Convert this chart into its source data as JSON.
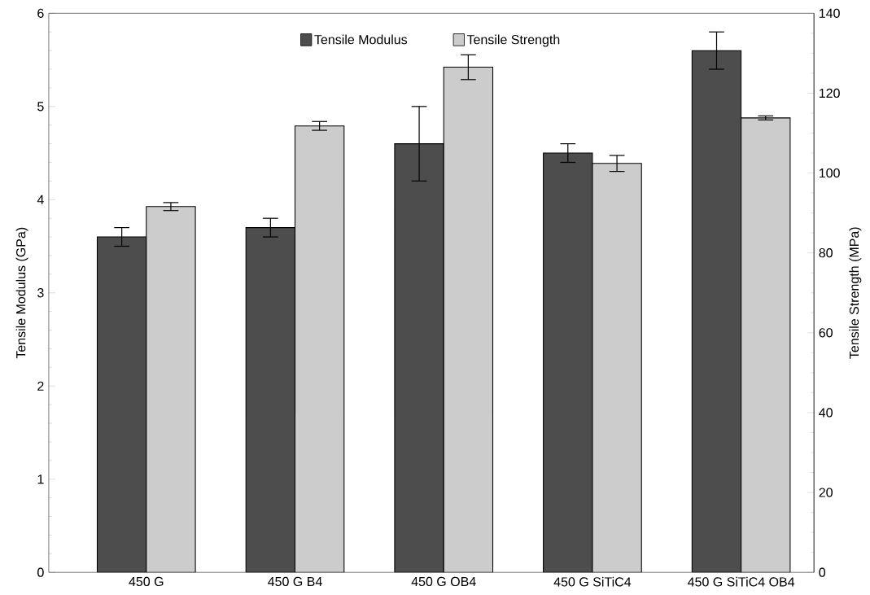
{
  "chart_data": {
    "type": "bar",
    "ylabel": "Tensile Modulus (GPa)",
    "y2label": "Tensile Strength (MPa)",
    "categories": [
      "450 G",
      "450 G B4",
      "450 G OB4",
      "450 G SiTiC4",
      "450 G SiTiC4 OB4"
    ],
    "series": [
      {
        "name": "Tensile Modulus",
        "color": "#4d4d4d",
        "values": [
          3.6,
          3.7,
          4.6,
          4.5,
          5.6
        ],
        "errors": [
          0.1,
          0.1,
          0.4,
          0.1,
          0.2
        ]
      },
      {
        "name": "Tensile Strength",
        "color": "#cccccc",
        "axis": "y2",
        "values": [
          91.6,
          111.8,
          126.5,
          102.4,
          113.8
        ],
        "errors": [
          1,
          1.1,
          3.1,
          2,
          0.5
        ]
      }
    ],
    "ylim": [
      0,
      6
    ],
    "yticks": [
      0,
      1,
      2,
      3,
      4,
      5,
      6
    ],
    "y2lim": [
      0,
      140
    ],
    "y2ticks": [
      0,
      20,
      40,
      60,
      80,
      100,
      120,
      140
    ],
    "legend": "top",
    "grid": false
  }
}
